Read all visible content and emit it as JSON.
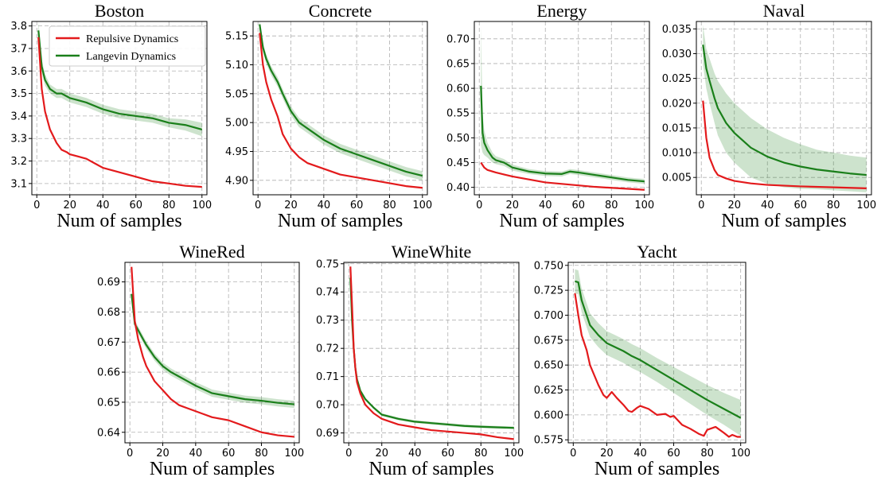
{
  "chart_data": [
    {
      "type": "line",
      "title": "Boston",
      "xlabel": "Num of samples",
      "xlim": [
        -3,
        103
      ],
      "ylim": [
        3.05,
        3.82
      ],
      "xticks": [
        0,
        20,
        40,
        60,
        80,
        100
      ],
      "yticks": [
        3.1,
        3.2,
        3.3,
        3.4,
        3.5,
        3.6,
        3.7,
        3.8
      ],
      "tick_decimals": 1,
      "legend": "top-right",
      "series": [
        {
          "name": "Repulsive Dynamics",
          "color": "#e31a1c",
          "x": [
            1,
            3,
            5,
            8,
            12,
            15,
            18,
            20,
            25,
            30,
            35,
            40,
            50,
            60,
            70,
            80,
            90,
            100
          ],
          "y": [
            3.75,
            3.52,
            3.42,
            3.34,
            3.28,
            3.25,
            3.24,
            3.23,
            3.22,
            3.21,
            3.19,
            3.17,
            3.15,
            3.13,
            3.11,
            3.1,
            3.09,
            3.085
          ]
        },
        {
          "name": "Langevin Dynamics",
          "color": "#1a7f1a",
          "x": [
            1,
            3,
            5,
            8,
            12,
            15,
            20,
            25,
            30,
            40,
            50,
            60,
            70,
            80,
            90,
            100
          ],
          "y": [
            3.78,
            3.62,
            3.56,
            3.52,
            3.5,
            3.5,
            3.48,
            3.47,
            3.46,
            3.43,
            3.41,
            3.4,
            3.39,
            3.37,
            3.36,
            3.34
          ],
          "band": [
            0.04,
            0.03,
            0.025,
            0.02,
            0.02,
            0.02,
            0.02,
            0.02,
            0.02,
            0.02,
            0.02,
            0.02,
            0.02,
            0.02,
            0.025,
            0.03
          ]
        }
      ]
    },
    {
      "type": "line",
      "title": "Concrete",
      "xlabel": "Num of samples",
      "xlim": [
        -3,
        103
      ],
      "ylim": [
        4.875,
        5.175
      ],
      "xticks": [
        0,
        20,
        40,
        60,
        80,
        100
      ],
      "yticks": [
        4.9,
        4.95,
        5.0,
        5.05,
        5.1,
        5.15
      ],
      "tick_decimals": 2,
      "series": [
        {
          "name": "Repulsive Dynamics",
          "color": "#e31a1c",
          "x": [
            1,
            3,
            5,
            8,
            12,
            15,
            20,
            25,
            30,
            35,
            40,
            50,
            60,
            70,
            80,
            90,
            100
          ],
          "y": [
            5.155,
            5.1,
            5.07,
            5.04,
            5.01,
            4.98,
            4.955,
            4.94,
            4.93,
            4.925,
            4.92,
            4.91,
            4.905,
            4.9,
            4.895,
            4.89,
            4.887
          ]
        },
        {
          "name": "Langevin Dynamics",
          "color": "#1a7f1a",
          "x": [
            1,
            3,
            5,
            8,
            12,
            15,
            20,
            25,
            30,
            35,
            40,
            50,
            60,
            70,
            80,
            90,
            100
          ],
          "y": [
            5.17,
            5.13,
            5.11,
            5.09,
            5.07,
            5.05,
            5.02,
            5.0,
            4.99,
            4.98,
            4.97,
            4.955,
            4.945,
            4.935,
            4.925,
            4.915,
            4.908
          ],
          "band": [
            0.008,
            0.008,
            0.008,
            0.008,
            0.008,
            0.008,
            0.008,
            0.008,
            0.008,
            0.008,
            0.008,
            0.008,
            0.008,
            0.008,
            0.008,
            0.008,
            0.008
          ]
        }
      ]
    },
    {
      "type": "line",
      "title": "Energy",
      "xlabel": "Num of samples",
      "xlim": [
        -3,
        103
      ],
      "ylim": [
        0.385,
        0.735
      ],
      "xticks": [
        0,
        20,
        40,
        60,
        80,
        100
      ],
      "yticks": [
        0.4,
        0.45,
        0.5,
        0.55,
        0.6,
        0.65,
        0.7
      ],
      "tick_decimals": 2,
      "series": [
        {
          "name": "Repulsive Dynamics",
          "color": "#e31a1c",
          "x": [
            1,
            3,
            5,
            10,
            20,
            30,
            40,
            50,
            60,
            70,
            80,
            90,
            100
          ],
          "y": [
            0.45,
            0.44,
            0.435,
            0.43,
            0.422,
            0.416,
            0.41,
            0.407,
            0.404,
            0.401,
            0.399,
            0.397,
            0.395
          ]
        },
        {
          "name": "Langevin Dynamics",
          "color": "#1a7f1a",
          "x": [
            1,
            2,
            3,
            5,
            8,
            10,
            15,
            20,
            30,
            40,
            50,
            55,
            60,
            70,
            80,
            90,
            100
          ],
          "y": [
            0.605,
            0.51,
            0.49,
            0.475,
            0.46,
            0.455,
            0.45,
            0.44,
            0.432,
            0.428,
            0.427,
            0.432,
            0.43,
            0.425,
            0.42,
            0.415,
            0.412
          ],
          "band": [
            0.12,
            0.04,
            0.025,
            0.015,
            0.01,
            0.008,
            0.007,
            0.006,
            0.005,
            0.005,
            0.005,
            0.005,
            0.005,
            0.005,
            0.005,
            0.005,
            0.005
          ]
        }
      ]
    },
    {
      "type": "line",
      "title": "Naval",
      "xlabel": "Num of samples",
      "xlim": [
        -3,
        103
      ],
      "ylim": [
        0.0015,
        0.0365
      ],
      "xticks": [
        0,
        20,
        40,
        60,
        80,
        100
      ],
      "yticks": [
        0.005,
        0.01,
        0.015,
        0.02,
        0.025,
        0.03,
        0.035
      ],
      "tick_decimals": 3,
      "series": [
        {
          "name": "Repulsive Dynamics",
          "color": "#e31a1c",
          "x": [
            1,
            3,
            5,
            8,
            10,
            15,
            20,
            30,
            40,
            60,
            80,
            100
          ],
          "y": [
            0.0205,
            0.013,
            0.009,
            0.0065,
            0.0055,
            0.0048,
            0.0043,
            0.0038,
            0.0035,
            0.0032,
            0.003,
            0.0028
          ]
        },
        {
          "name": "Langevin Dynamics",
          "color": "#1a7f1a",
          "x": [
            1,
            3,
            5,
            8,
            10,
            15,
            20,
            30,
            40,
            50,
            60,
            70,
            80,
            90,
            100
          ],
          "y": [
            0.0318,
            0.027,
            0.0245,
            0.021,
            0.019,
            0.016,
            0.014,
            0.011,
            0.0092,
            0.008,
            0.0072,
            0.0066,
            0.0062,
            0.0058,
            0.0055
          ],
          "band": [
            0.004,
            0.004,
            0.0045,
            0.005,
            0.0055,
            0.006,
            0.006,
            0.006,
            0.0055,
            0.005,
            0.0045,
            0.004,
            0.0038,
            0.0036,
            0.0035
          ]
        }
      ]
    },
    {
      "type": "line",
      "title": "WineRed",
      "xlabel": "Num of samples",
      "xlim": [
        -3,
        103
      ],
      "ylim": [
        0.6365,
        0.6965
      ],
      "xticks": [
        0,
        20,
        40,
        60,
        80,
        100
      ],
      "yticks": [
        0.64,
        0.65,
        0.66,
        0.67,
        0.68,
        0.69
      ],
      "tick_decimals": 2,
      "series": [
        {
          "name": "Repulsive Dynamics",
          "color": "#e31a1c",
          "x": [
            1,
            3,
            5,
            8,
            10,
            15,
            20,
            25,
            30,
            35,
            40,
            50,
            60,
            70,
            80,
            90,
            100
          ],
          "y": [
            0.695,
            0.677,
            0.671,
            0.665,
            0.662,
            0.657,
            0.654,
            0.651,
            0.649,
            0.648,
            0.647,
            0.645,
            0.644,
            0.642,
            0.64,
            0.639,
            0.6385
          ]
        },
        {
          "name": "Langevin Dynamics",
          "color": "#1a7f1a",
          "x": [
            1,
            3,
            5,
            8,
            10,
            15,
            20,
            25,
            30,
            35,
            40,
            50,
            60,
            70,
            80,
            90,
            100
          ],
          "y": [
            0.686,
            0.676,
            0.674,
            0.671,
            0.669,
            0.665,
            0.662,
            0.66,
            0.6585,
            0.657,
            0.6555,
            0.653,
            0.652,
            0.651,
            0.6505,
            0.6498,
            0.6493
          ],
          "band": [
            0.0015,
            0.0012,
            0.0012,
            0.0012,
            0.0012,
            0.0012,
            0.0012,
            0.0012,
            0.0012,
            0.0012,
            0.0012,
            0.0012,
            0.0012,
            0.0012,
            0.0012,
            0.0012,
            0.0012
          ]
        }
      ]
    },
    {
      "type": "line",
      "title": "WineWhite",
      "xlabel": "Num of samples",
      "xlim": [
        -3,
        103
      ],
      "ylim": [
        0.6865,
        0.7505
      ],
      "xticks": [
        0,
        20,
        40,
        60,
        80,
        100
      ],
      "yticks": [
        0.69,
        0.7,
        0.71,
        0.72,
        0.73,
        0.74,
        0.75
      ],
      "tick_decimals": 2,
      "series": [
        {
          "name": "Repulsive Dynamics",
          "color": "#e31a1c",
          "x": [
            1,
            2,
            3,
            4,
            5,
            7,
            10,
            15,
            20,
            30,
            40,
            50,
            60,
            70,
            80,
            90,
            100
          ],
          "y": [
            0.749,
            0.735,
            0.72,
            0.713,
            0.708,
            0.704,
            0.7,
            0.697,
            0.695,
            0.693,
            0.692,
            0.691,
            0.6905,
            0.69,
            0.6895,
            0.6885,
            0.6878
          ]
        },
        {
          "name": "Langevin Dynamics",
          "color": "#1a7f1a",
          "x": [
            1,
            2,
            3,
            4,
            5,
            7,
            10,
            15,
            20,
            30,
            40,
            50,
            60,
            70,
            80,
            90,
            100
          ],
          "y": [
            0.745,
            0.73,
            0.72,
            0.713,
            0.709,
            0.705,
            0.702,
            0.699,
            0.6965,
            0.695,
            0.694,
            0.6935,
            0.693,
            0.6925,
            0.6922,
            0.692,
            0.6918
          ],
          "band": [
            0.004,
            0.002,
            0.001,
            0.0008,
            0.0006,
            0.0005,
            0.0005,
            0.0005,
            0.0005,
            0.0005,
            0.0005,
            0.0005,
            0.0005,
            0.0005,
            0.0005,
            0.0005,
            0.0005
          ]
        }
      ]
    },
    {
      "type": "line",
      "title": "Yacht",
      "xlabel": "Num of samples",
      "xlim": [
        -3,
        103
      ],
      "ylim": [
        0.572,
        0.753
      ],
      "xticks": [
        0,
        20,
        40,
        60,
        80,
        100
      ],
      "yticks": [
        0.575,
        0.6,
        0.625,
        0.65,
        0.675,
        0.7,
        0.725,
        0.75
      ],
      "tick_decimals": 3,
      "series": [
        {
          "name": "Repulsive Dynamics",
          "color": "#e31a1c",
          "x": [
            1,
            3,
            5,
            8,
            10,
            15,
            18,
            20,
            23,
            26,
            30,
            33,
            35,
            38,
            40,
            45,
            50,
            55,
            58,
            60,
            65,
            70,
            75,
            78,
            80,
            85,
            90,
            93,
            95,
            98,
            100
          ],
          "y": [
            0.722,
            0.7,
            0.68,
            0.665,
            0.65,
            0.63,
            0.62,
            0.617,
            0.623,
            0.617,
            0.61,
            0.604,
            0.603,
            0.607,
            0.609,
            0.606,
            0.6,
            0.601,
            0.598,
            0.599,
            0.59,
            0.586,
            0.581,
            0.579,
            0.585,
            0.588,
            0.582,
            0.578,
            0.58,
            0.578,
            0.578
          ]
        },
        {
          "name": "Langevin Dynamics",
          "color": "#1a7f1a",
          "x": [
            1,
            3,
            5,
            8,
            10,
            15,
            20,
            25,
            30,
            35,
            40,
            50,
            60,
            70,
            80,
            90,
            100
          ],
          "y": [
            0.734,
            0.733,
            0.715,
            0.7,
            0.69,
            0.68,
            0.672,
            0.668,
            0.664,
            0.659,
            0.655,
            0.645,
            0.635,
            0.625,
            0.615,
            0.606,
            0.597
          ],
          "band": [
            0.012,
            0.012,
            0.012,
            0.012,
            0.012,
            0.012,
            0.012,
            0.012,
            0.012,
            0.012,
            0.012,
            0.012,
            0.013,
            0.014,
            0.015,
            0.016,
            0.018
          ]
        }
      ]
    }
  ]
}
